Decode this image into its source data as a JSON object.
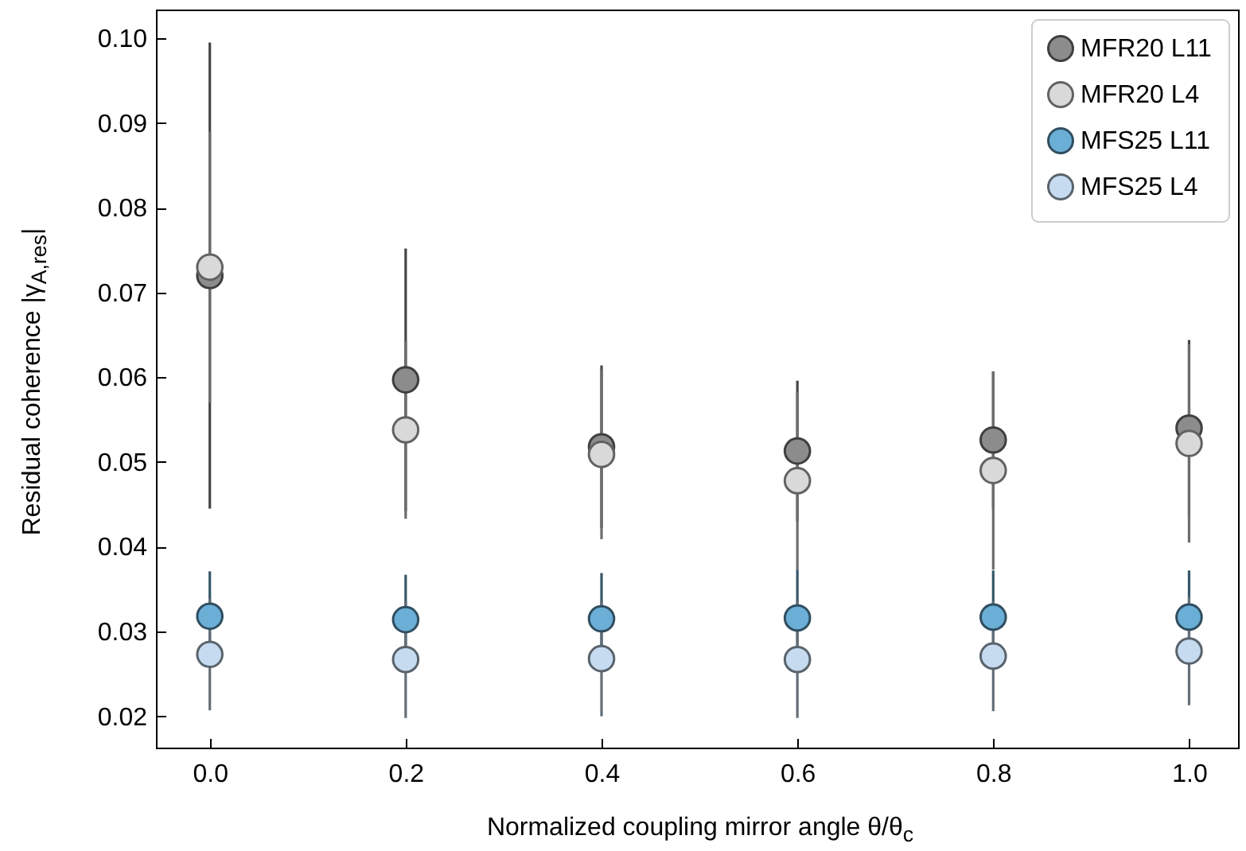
{
  "chart_data": {
    "type": "scatter",
    "xlabel": "Normalized coupling mirror angle θ/θ$_{c}$",
    "ylabel": "Residual coherence |γ$_{A,res}$|",
    "x": [
      0.0,
      0.2,
      0.4,
      0.6,
      0.8,
      1.0
    ],
    "series": [
      {
        "name": "MFR20 L11",
        "color": "#8c8c8c",
        "values": [
          0.072,
          0.0597,
          0.0518,
          0.0513,
          0.0526,
          0.054
        ],
        "errors": [
          0.0275,
          0.0155,
          0.0096,
          0.0083,
          0.0081,
          0.0104
        ]
      },
      {
        "name": "MFR20 L4",
        "color": "#d9d9d9",
        "values": [
          0.073,
          0.0538,
          0.0509,
          0.0478,
          0.049,
          0.0522
        ],
        "errors": [
          0.016,
          0.0105,
          0.01,
          0.0105,
          0.0117,
          0.0117
        ]
      },
      {
        "name": "MFS25 L11",
        "color": "#6baed6",
        "values": [
          0.0318,
          0.0314,
          0.0315,
          0.0316,
          0.0317,
          0.0317
        ],
        "errors": [
          0.0053,
          0.0053,
          0.0054,
          0.0057,
          0.0055,
          0.0055
        ]
      },
      {
        "name": "MFS25 L4",
        "color": "#c6dbef",
        "values": [
          0.0273,
          0.0267,
          0.0268,
          0.0267,
          0.0271,
          0.0277
        ],
        "errors": [
          0.0066,
          0.0069,
          0.0068,
          0.0069,
          0.0065,
          0.0064
        ]
      }
    ],
    "xlim": [
      -0.055,
      1.05
    ],
    "xticks": [
      {
        "value": 0,
        "label": "0.0"
      },
      {
        "value": 0.2,
        "label": "0.2"
      },
      {
        "value": 0.4,
        "label": "0.4"
      },
      {
        "value": 0.6,
        "label": "0.6"
      },
      {
        "value": 0.8,
        "label": "0.8"
      },
      {
        "value": 1,
        "label": "1.0"
      }
    ],
    "ylim": [
      0.0163,
      0.1034
    ],
    "yticks": [
      {
        "value": 0.02,
        "label": "0.02"
      },
      {
        "value": 0.03,
        "label": "0.03"
      },
      {
        "value": 0.04,
        "label": "0.04"
      },
      {
        "value": 0.05,
        "label": "0.05"
      },
      {
        "value": 0.06,
        "label": "0.06"
      },
      {
        "value": 0.07,
        "label": "0.07"
      },
      {
        "value": 0.08,
        "label": "0.08"
      },
      {
        "value": 0.09,
        "label": "0.09"
      },
      {
        "value": 0.1,
        "label": "0.10"
      }
    ],
    "marker": "circle",
    "grid": false,
    "legend": "top right"
  }
}
